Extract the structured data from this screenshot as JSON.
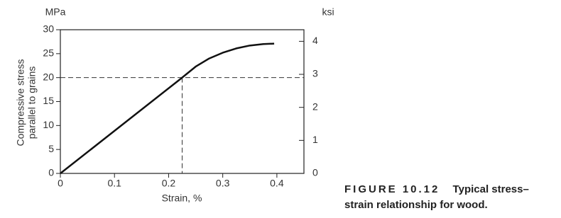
{
  "chart_data": {
    "type": "line",
    "y_unit": "MPa",
    "y2_unit": "ksi",
    "y_label": [
      "Compressive stress",
      "parallel to grains"
    ],
    "x_label": "Strain, %",
    "x": [
      0,
      0.225,
      0.25,
      0.275,
      0.3,
      0.325,
      0.35,
      0.375,
      0.395
    ],
    "series": [
      {
        "color": "#111111",
        "values": [
          0,
          20,
          22.3,
          24.0,
          25.2,
          26.1,
          26.7,
          27.0,
          27.1
        ]
      }
    ],
    "reference": {
      "x": 0.225,
      "y": 20
    },
    "xlim": [
      0,
      0.45
    ],
    "xticks": [
      0,
      0.1,
      0.2,
      0.3,
      0.4
    ],
    "ylim": [
      0,
      30
    ],
    "yticks": [
      0,
      5,
      10,
      15,
      20,
      25,
      30
    ],
    "y2lim": [
      0,
      4.351
    ],
    "y2ticks": [
      0,
      1,
      2,
      3,
      4
    ],
    "caption": {
      "label": "FIGURE 10.12",
      "text": [
        "Typical stress–",
        "strain relationship for wood."
      ]
    }
  }
}
